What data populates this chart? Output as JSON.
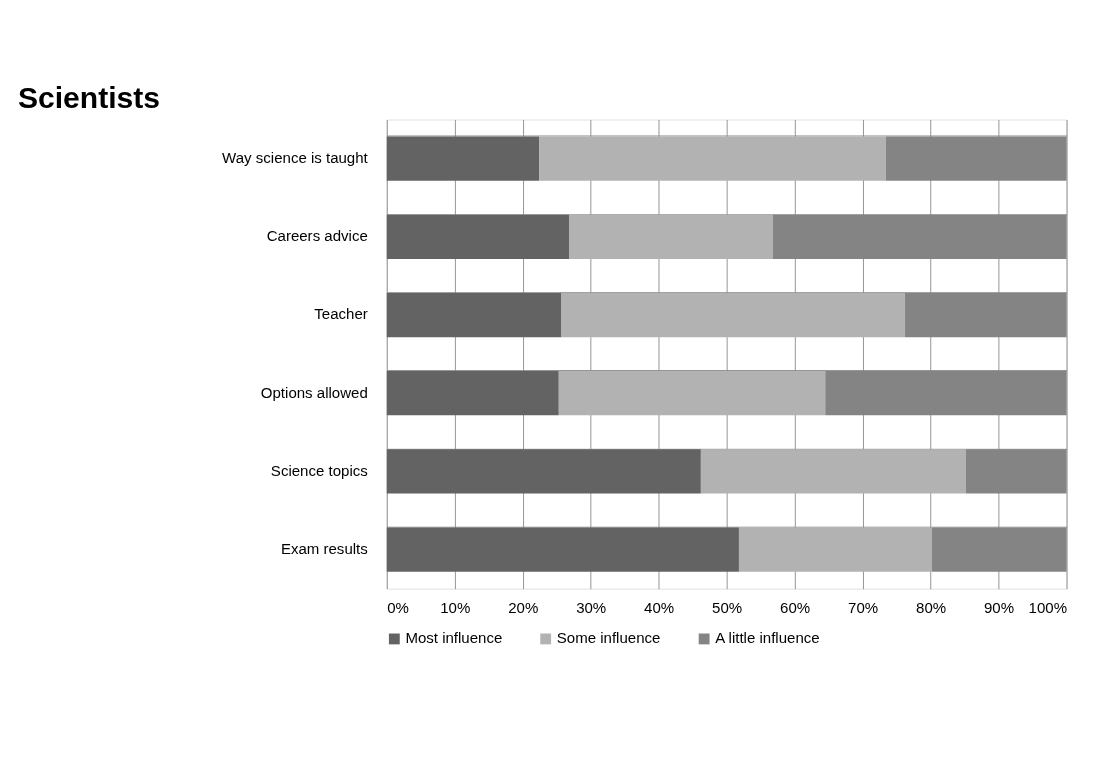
{
  "chart_data": {
    "type": "bar",
    "orientation": "horizontal",
    "stacked": true,
    "title": "Scientists",
    "categories": [
      "Way science is taught",
      "Careers advice",
      "Teacher",
      "Options allowed",
      "Science topics",
      "Exam results"
    ],
    "series": [
      {
        "name": "Most influence",
        "color": "#636363",
        "values": [
          22.4,
          26.8,
          25.7,
          25.3,
          46.2,
          51.8
        ]
      },
      {
        "name": "Some influence",
        "color": "#b2b2b2",
        "values": [
          51.0,
          30.0,
          50.5,
          39.2,
          39.0,
          28.4
        ]
      },
      {
        "name": "A little influence",
        "color": "#848484",
        "values": [
          26.6,
          43.2,
          23.8,
          35.5,
          14.8,
          19.8
        ]
      }
    ],
    "xlim": [
      0,
      100
    ],
    "xticks": [
      {
        "value": 0,
        "label": "0%"
      },
      {
        "value": 10,
        "label": "10%"
      },
      {
        "value": 20,
        "label": "20%"
      },
      {
        "value": 30,
        "label": "30%"
      },
      {
        "value": 40,
        "label": "40%"
      },
      {
        "value": 50,
        "label": "50%"
      },
      {
        "value": 60,
        "label": "60%"
      },
      {
        "value": 70,
        "label": "70%"
      },
      {
        "value": 80,
        "label": "80%"
      },
      {
        "value": 90,
        "label": "90%"
      },
      {
        "value": 100,
        "label": "100%"
      }
    ],
    "grid": true,
    "legend": "bottom"
  }
}
